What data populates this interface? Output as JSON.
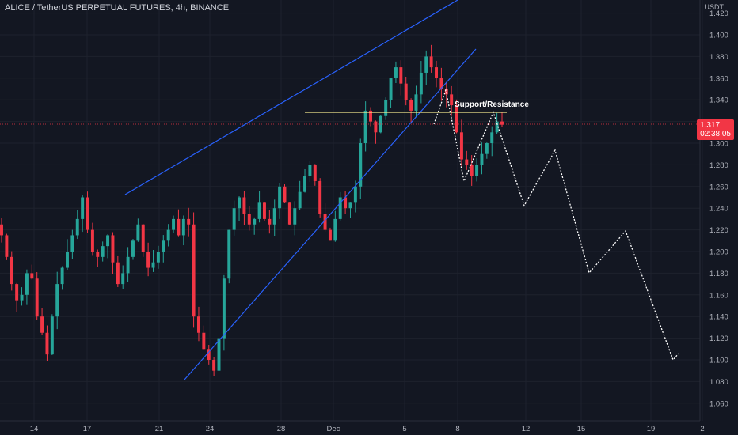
{
  "header": {
    "symbol_line": "ALICE / TetherUS PERPETUAL FUTURES, 4h, BINANCE",
    "currency": "USDT"
  },
  "price_tag": {
    "price": "1.317",
    "countdown": "02:38:05",
    "color": "#f23645"
  },
  "colors": {
    "background": "#131722",
    "up_candle": "#26a69a",
    "down_candle": "#f23645",
    "trendline": "#2962ff",
    "support_line": "#f0e68c",
    "projection": "#ffffff"
  },
  "annotation": {
    "support_label": "Support/Resistance"
  },
  "chart_data": {
    "type": "candlestick",
    "title": "ALICE / TetherUS PERPETUAL FUTURES, 4h, BINANCE",
    "y_axis": {
      "unit": "USDT",
      "range": [
        1.05,
        1.43
      ],
      "tick_labels": [
        "1.420",
        "1.400",
        "1.380",
        "1.360",
        "1.340",
        "1.320",
        "1.300",
        "1.280",
        "1.260",
        "1.240",
        "1.220",
        "1.200",
        "1.180",
        "1.160",
        "1.140",
        "1.120",
        "1.100",
        "1.080",
        "1.060"
      ]
    },
    "x_axis": {
      "tick_labels": [
        "14",
        "17",
        "21",
        "24",
        "28",
        "Dec",
        "5",
        "8",
        "12",
        "15",
        "19",
        "2"
      ]
    },
    "current_price": 1.317,
    "support_resistance_level": 1.328,
    "candles_description": "4h candles from approx. 13 Nov to 9 Dec; low near 1.076 on 22 Nov, high near 1.393 on 5 Dec",
    "candle_closes": [
      1.215,
      1.195,
      1.17,
      1.155,
      1.16,
      1.18,
      1.175,
      1.14,
      1.125,
      1.105,
      1.14,
      1.17,
      1.185,
      1.2,
      1.215,
      1.23,
      1.25,
      1.22,
      1.2,
      1.195,
      1.205,
      1.215,
      1.19,
      1.17,
      1.18,
      1.195,
      1.21,
      1.225,
      1.2,
      1.185,
      1.19,
      1.2,
      1.21,
      1.22,
      1.23,
      1.215,
      1.23,
      1.225,
      1.14,
      1.125,
      1.11,
      1.1,
      1.09,
      1.12,
      1.175,
      1.22,
      1.24,
      1.25,
      1.235,
      1.225,
      1.23,
      1.245,
      1.23,
      1.225,
      1.24,
      1.26,
      1.245,
      1.225,
      1.24,
      1.255,
      1.27,
      1.28,
      1.265,
      1.235,
      1.22,
      1.21,
      1.23,
      1.25,
      1.24,
      1.245,
      1.26,
      1.3,
      1.33,
      1.32,
      1.31,
      1.325,
      1.34,
      1.36,
      1.37,
      1.355,
      1.34,
      1.33,
      1.345,
      1.365,
      1.38,
      1.37,
      1.36,
      1.35,
      1.345,
      1.335,
      1.31,
      1.285,
      1.28,
      1.27,
      1.28,
      1.29,
      1.3,
      1.31,
      1.32,
      1.317
    ],
    "wedge_lines": [
      {
        "from": [
          "Nov 19",
          1.252
        ],
        "to": [
          "Dec 8",
          1.432
        ]
      },
      {
        "from": [
          "Nov 22",
          1.082
        ],
        "to": [
          "Dec 9",
          1.385
        ]
      }
    ],
    "projection_path": [
      {
        "x": "Dec 7",
        "y": 1.312
      },
      {
        "x": "Dec 8",
        "y": 1.352
      },
      {
        "x": "Dec 8",
        "y": 1.265
      },
      {
        "x": "Dec 9",
        "y": 1.327
      },
      {
        "x": "Dec 11",
        "y": 1.244
      },
      {
        "x": "Dec 13",
        "y": 1.293
      },
      {
        "x": "Dec 15",
        "y": 1.181
      },
      {
        "x": "Dec 17",
        "y": 1.22
      },
      {
        "x": "Dec 19",
        "y": 1.098
      },
      {
        "x": "Dec 20",
        "y": 1.106
      }
    ]
  }
}
